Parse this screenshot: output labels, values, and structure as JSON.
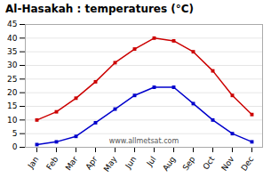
{
  "chart_data": {
    "type": "line",
    "title": "Al-Hasakah : temperatures (°C)",
    "categories": [
      "Jan",
      "Feb",
      "Mar",
      "Apr",
      "May",
      "Jun",
      "Jul",
      "Aug",
      "Sep",
      "Oct",
      "Nov",
      "Dec"
    ],
    "series": [
      {
        "color": "#cc0000",
        "marker": "square",
        "values": [
          10,
          13,
          18,
          24,
          31,
          36,
          40,
          39,
          35,
          28,
          19,
          12
        ]
      },
      {
        "color": "#0000cc",
        "marker": "square",
        "values": [
          1,
          2,
          4,
          9,
          14,
          19,
          22,
          22,
          16,
          10,
          5,
          2
        ]
      }
    ],
    "ylim": [
      0,
      45
    ],
    "yticks": [
      0,
      5,
      10,
      15,
      20,
      25,
      30,
      35,
      40,
      45
    ],
    "grid": true,
    "annotations": [
      "www.allmetsat.com"
    ]
  }
}
